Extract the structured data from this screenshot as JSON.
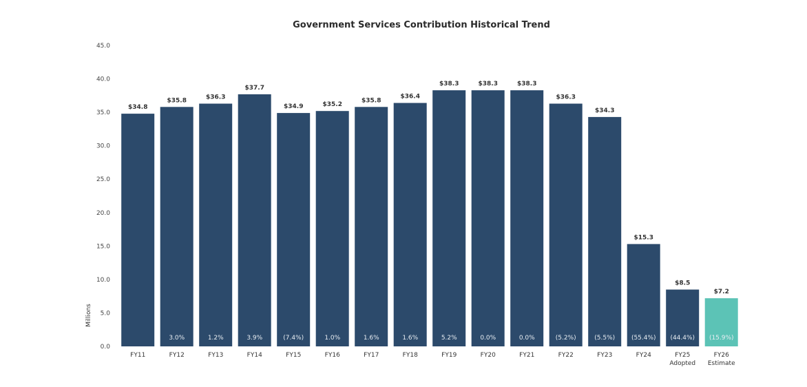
{
  "chart_data": {
    "type": "bar",
    "title": "Government Services Contribution Historical Trend",
    "xlabel": "",
    "ylabel": "Millions",
    "ylim": [
      0,
      45
    ],
    "yticks": [
      "0.0",
      "5.0",
      "10.0",
      "15.0",
      "20.0",
      "25.0",
      "30.0",
      "35.0",
      "40.0",
      "45.0"
    ],
    "categories": [
      [
        "FY11"
      ],
      [
        "FY12"
      ],
      [
        "FY13"
      ],
      [
        "FY14"
      ],
      [
        "FY15"
      ],
      [
        "FY16"
      ],
      [
        "FY17"
      ],
      [
        "FY18"
      ],
      [
        "FY19"
      ],
      [
        "FY20"
      ],
      [
        "FY21"
      ],
      [
        "FY22"
      ],
      [
        "FY23"
      ],
      [
        "FY24"
      ],
      [
        "FY25",
        "Adopted"
      ],
      [
        "FY26",
        "Estimate"
      ]
    ],
    "values": [
      34.8,
      35.8,
      36.3,
      37.7,
      34.9,
      35.2,
      35.8,
      36.4,
      38.3,
      38.3,
      38.3,
      36.3,
      34.3,
      15.3,
      8.5,
      7.2
    ],
    "value_labels": [
      "$34.8",
      "$35.8",
      "$36.3",
      "$37.7",
      "$34.9",
      "$35.2",
      "$35.8",
      "$36.4",
      "$38.3",
      "$38.3",
      "$38.3",
      "$36.3",
      "$34.3",
      "$15.3",
      "$8.5",
      "$7.2"
    ],
    "pct_labels": [
      "",
      "3.0%",
      "1.2%",
      "3.9%",
      "(7.4%)",
      "1.0%",
      "1.6%",
      "1.6%",
      "5.2%",
      "0.0%",
      "0.0%",
      "(5.2%)",
      "(5.5%)",
      "(55.4%)",
      "(44.4%)",
      "(15.9%)"
    ],
    "colors": {
      "primary": "#2c4a6b",
      "estimate": "#5cc3b6",
      "estimate_label": "#2c6f6a"
    },
    "grid": false,
    "legend": "none"
  }
}
